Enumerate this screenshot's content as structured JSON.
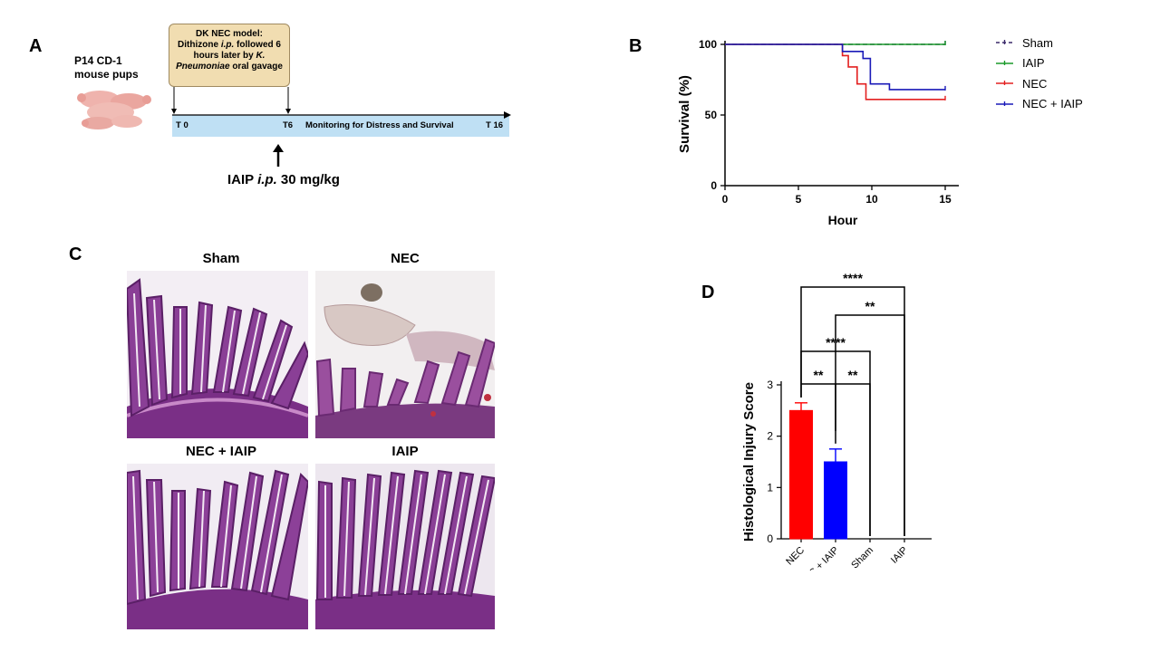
{
  "panelA": {
    "letter": "A",
    "subject_line1": "P14 CD-1",
    "subject_line2": "mouse pups",
    "box_title": "DK NEC model:",
    "box_line2_pre": "Dithizone ",
    "box_line2_italic": "i.p.",
    "box_line2_post": " followed 6",
    "box_line3_pre": "hours later by ",
    "box_line3_italic": "K.",
    "box_line4_italic": "Pneumoniae",
    "box_line4_post": " oral gavage",
    "t0": "T 0",
    "t6": "T6",
    "monitoring": "Monitoring for Distress and Survival",
    "t16": "T 16",
    "treatment_pre": "IAIP ",
    "treatment_italic": "i.p.",
    "treatment_post": " 30 mg/kg"
  },
  "panelB": {
    "letter": "B",
    "legend": [
      {
        "label": "Sham",
        "color": "#3a2a6a",
        "dashed": true
      },
      {
        "label": "IAIP",
        "color": "#1a9a2a",
        "dashed": false
      },
      {
        "label": "NEC",
        "color": "#e32020",
        "dashed": false
      },
      {
        "label": "NEC + IAIP",
        "color": "#1a1ab8",
        "dashed": false
      }
    ]
  },
  "panelC": {
    "letter": "C",
    "titles": [
      "Sham",
      "NEC",
      "NEC + IAIP",
      "IAIP"
    ]
  },
  "panelD": {
    "letter": "D",
    "significance": [
      "****",
      "**",
      "****",
      "**",
      "**"
    ]
  },
  "chart_data": [
    {
      "type": "line",
      "panel": "B",
      "title": "",
      "xlabel": "Hour",
      "ylabel": "Survival (%)",
      "xlim": [
        0,
        15
      ],
      "ylim": [
        0,
        100
      ],
      "xticks": [
        0,
        5,
        10,
        15
      ],
      "yticks": [
        0,
        50,
        100
      ],
      "legend_position": "right",
      "series": [
        {
          "name": "Sham",
          "color": "#3a2a6a",
          "dashed": true,
          "x": [
            0,
            15
          ],
          "y": [
            100,
            100
          ]
        },
        {
          "name": "IAIP",
          "color": "#1a9a2a",
          "dashed": false,
          "x": [
            0,
            15
          ],
          "y": [
            100,
            100
          ]
        },
        {
          "name": "NEC",
          "color": "#e32020",
          "dashed": false,
          "x": [
            0,
            8,
            8,
            8.4,
            8.4,
            9,
            9,
            9.6,
            9.6,
            15
          ],
          "y": [
            100,
            100,
            92,
            92,
            84,
            84,
            72,
            72,
            61,
            61
          ]
        },
        {
          "name": "NEC + IAIP",
          "color": "#1a1ab8",
          "dashed": false,
          "x": [
            0,
            8,
            8,
            9.4,
            9.4,
            9.9,
            9.9,
            11.2,
            11.2,
            15
          ],
          "y": [
            100,
            100,
            95,
            95,
            90,
            90,
            72,
            72,
            68,
            68
          ]
        }
      ]
    },
    {
      "type": "bar",
      "panel": "D",
      "title": "",
      "xlabel": "",
      "ylabel": "Histological Injury Score",
      "categories": [
        "NEC",
        "NEC + IAIP",
        "Sham",
        "IAIP"
      ],
      "values": [
        2.5,
        1.5,
        0,
        0
      ],
      "errors": [
        0.15,
        0.25,
        0,
        0
      ],
      "colors": [
        "#ff0000",
        "#0000ff",
        "#ff0000",
        "#0000ff"
      ],
      "ylim": [
        0,
        3
      ],
      "yticks": [
        0,
        1,
        2,
        3
      ],
      "comparisons": [
        {
          "from": "NEC",
          "to": "IAIP",
          "label": "****"
        },
        {
          "from": "NEC + IAIP",
          "to": "IAIP",
          "label": "**"
        },
        {
          "from": "NEC",
          "to": "Sham",
          "label": "****"
        },
        {
          "from": "NEC",
          "to": "NEC + IAIP",
          "label": "**"
        },
        {
          "from": "NEC + IAIP",
          "to": "Sham",
          "label": "**"
        }
      ]
    }
  ]
}
